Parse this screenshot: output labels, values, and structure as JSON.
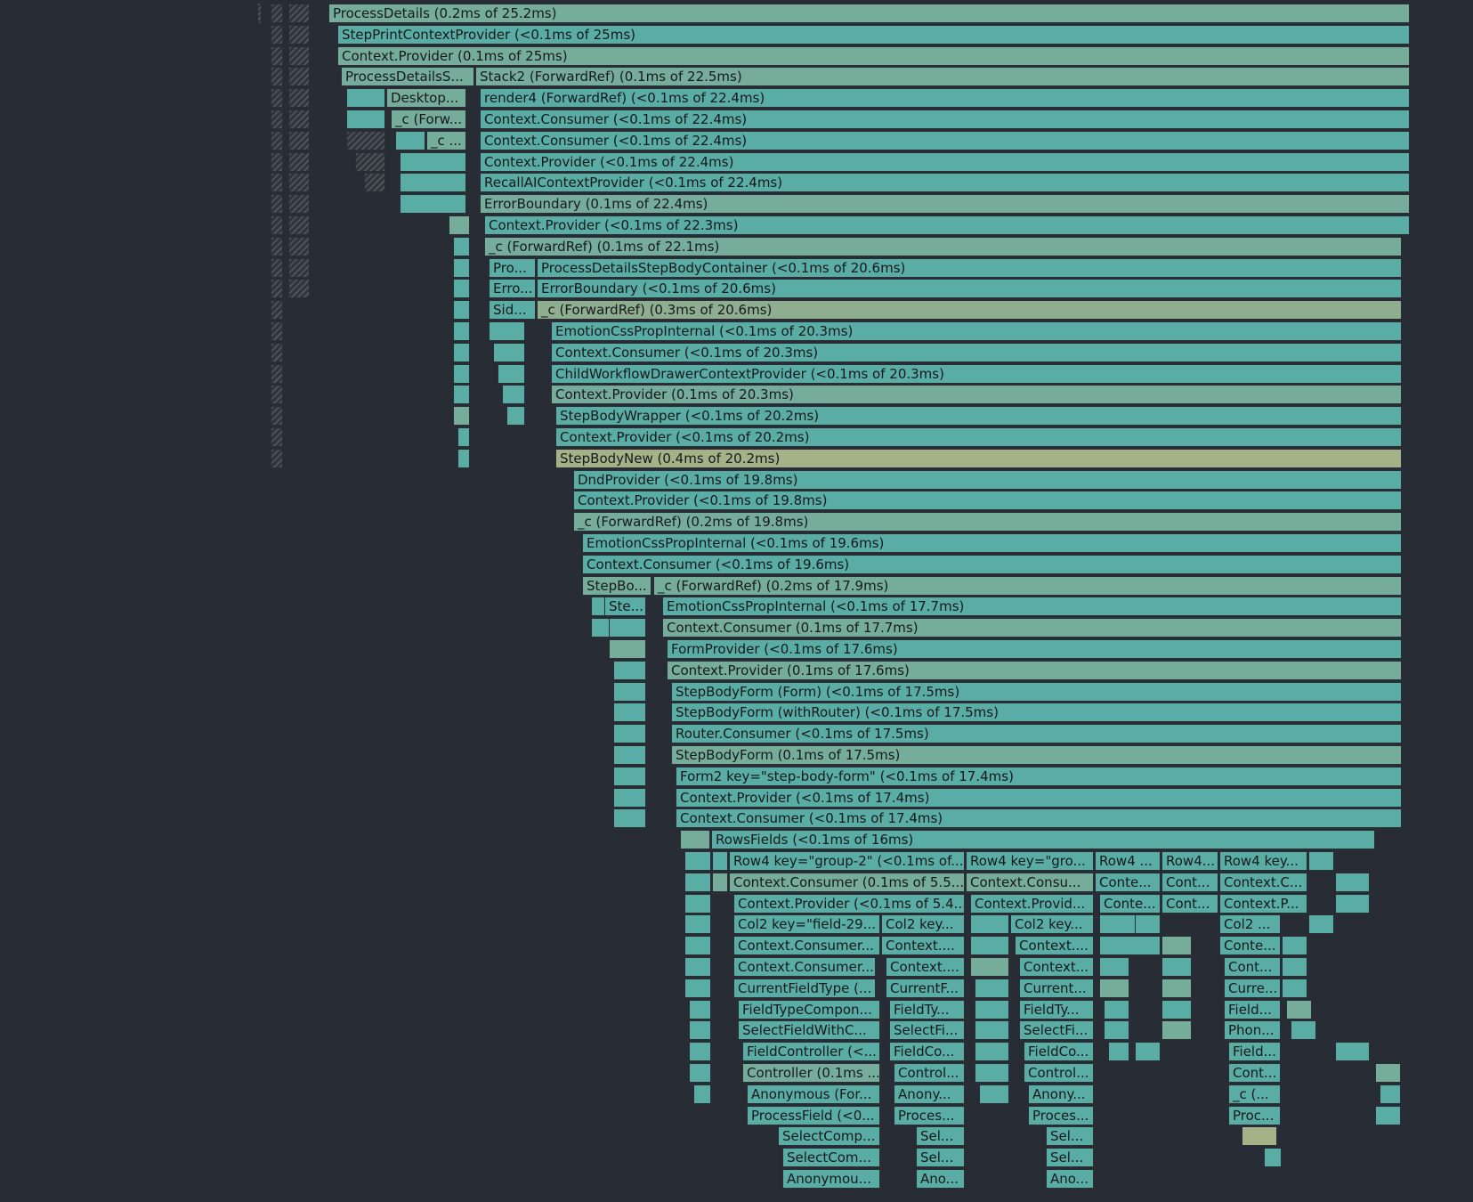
{
  "flamegraph": {
    "colors": {
      "background": "#282c34",
      "fast": "#5aada4",
      "mid": "#76ad9a",
      "slow": "#8fae8f",
      "slowest": "#a5b288",
      "teal": "#4fa9a9"
    },
    "rows": [
      [
        {
          "label": "ProcessDetails (0.2ms of 25.2ms)",
          "c": 2
        }
      ],
      [
        {
          "label": "StepPrintContextProvider (<0.1ms of 25ms)",
          "c": 1
        }
      ],
      [
        {
          "label": "Context.Provider (0.1ms of 25ms)",
          "c": 2
        }
      ],
      [
        {
          "label": "ProcessDetailsS...",
          "c": 2
        },
        {
          "label": "Stack2 (ForwardRef) (0.1ms of 22.5ms)",
          "c": 2
        }
      ],
      [
        {
          "label": "Desktop...",
          "c": 2
        },
        {
          "label": "render4 (ForwardRef) (<0.1ms of 22.4ms)",
          "c": 1
        }
      ],
      [
        {
          "label": "_c (Forw...",
          "c": 2
        },
        {
          "label": "Context.Consumer (<0.1ms of 22.4ms)",
          "c": 1
        }
      ],
      [
        {
          "label": "_c ...",
          "c": 2
        },
        {
          "label": "Context.Consumer (<0.1ms of 22.4ms)",
          "c": 1
        }
      ],
      [
        {
          "label": "Context.Provider (<0.1ms of 22.4ms)",
          "c": 1
        }
      ],
      [
        {
          "label": "RecallAIContextProvider (<0.1ms of 22.4ms)",
          "c": 1
        }
      ],
      [
        {
          "label": "ErrorBoundary (0.1ms of 22.4ms)",
          "c": 2
        }
      ],
      [
        {
          "label": "Context.Provider (<0.1ms of 22.3ms)",
          "c": 1
        }
      ],
      [
        {
          "label": "_c (ForwardRef) (0.1ms of 22.1ms)",
          "c": 2
        }
      ],
      [
        {
          "label": "Pro...",
          "c": 1
        },
        {
          "label": "ProcessDetailsStepBodyContainer (<0.1ms of 20.6ms)",
          "c": 1
        }
      ],
      [
        {
          "label": "Erro...",
          "c": 1
        },
        {
          "label": "ErrorBoundary (<0.1ms of 20.6ms)",
          "c": 1
        }
      ],
      [
        {
          "label": "Sid...",
          "c": 1
        },
        {
          "label": "_c (ForwardRef) (0.3ms of 20.6ms)",
          "c": 3
        }
      ],
      [
        {
          "label": "EmotionCssPropInternal (<0.1ms of 20.3ms)",
          "c": 1
        }
      ],
      [
        {
          "label": "Context.Consumer (<0.1ms of 20.3ms)",
          "c": 1
        }
      ],
      [
        {
          "label": "ChildWorkflowDrawerContextProvider (<0.1ms of 20.3ms)",
          "c": 1
        }
      ],
      [
        {
          "label": "Context.Provider (0.1ms of 20.3ms)",
          "c": 2
        }
      ],
      [
        {
          "label": "StepBodyWrapper (<0.1ms of 20.2ms)",
          "c": 1
        }
      ],
      [
        {
          "label": "Context.Provider (<0.1ms of 20.2ms)",
          "c": 1
        }
      ],
      [
        {
          "label": "StepBodyNew (0.4ms of 20.2ms)",
          "c": 4
        }
      ],
      [
        {
          "label": "DndProvider (<0.1ms of 19.8ms)",
          "c": 1
        }
      ],
      [
        {
          "label": "Context.Provider (<0.1ms of 19.8ms)",
          "c": 1
        }
      ],
      [
        {
          "label": "_c (ForwardRef) (0.2ms of 19.8ms)",
          "c": 2
        }
      ],
      [
        {
          "label": "EmotionCssPropInternal (<0.1ms of 19.6ms)",
          "c": 1
        }
      ],
      [
        {
          "label": "Context.Consumer (<0.1ms of 19.6ms)",
          "c": 1
        }
      ],
      [
        {
          "label": "StepBo...",
          "c": 2
        },
        {
          "label": "_c (ForwardRef) (0.2ms of 17.9ms)",
          "c": 2
        }
      ],
      [
        {
          "label": "Ste...",
          "c": 1
        },
        {
          "label": "EmotionCssPropInternal (<0.1ms of 17.7ms)",
          "c": 1
        }
      ],
      [
        {
          "label": "Context.Consumer (0.1ms of 17.7ms)",
          "c": 2
        }
      ],
      [
        {
          "label": "FormProvider (<0.1ms of 17.6ms)",
          "c": 1
        }
      ],
      [
        {
          "label": "Context.Provider (0.1ms of 17.6ms)",
          "c": 2
        }
      ],
      [
        {
          "label": "StepBodyForm (Form) (<0.1ms of 17.5ms)",
          "c": 1
        }
      ],
      [
        {
          "label": "StepBodyForm (withRouter) (<0.1ms of 17.5ms)",
          "c": 1
        }
      ],
      [
        {
          "label": "Router.Consumer (<0.1ms of 17.5ms)",
          "c": 1
        }
      ],
      [
        {
          "label": "StepBodyForm (0.1ms of 17.5ms)",
          "c": 2
        }
      ],
      [
        {
          "label": "Form2 key=\"step-body-form\" (<0.1ms of 17.4ms)",
          "c": 1
        }
      ],
      [
        {
          "label": "Context.Provider (<0.1ms of 17.4ms)",
          "c": 1
        }
      ],
      [
        {
          "label": "Context.Consumer (<0.1ms of 17.4ms)",
          "c": 1
        }
      ],
      [
        {
          "label": "RowsFields (<0.1ms of 16ms)",
          "c": 1
        }
      ],
      [
        {
          "label": "Row4 key=\"group-2\" (<0.1ms of...",
          "c": 1
        },
        {
          "label": "Row4 key=\"gro...",
          "c": 1
        },
        {
          "label": "Row4 ...",
          "c": 1
        },
        {
          "label": "Row4...",
          "c": 1
        },
        {
          "label": "Row4 key...",
          "c": 1
        }
      ],
      [
        {
          "label": "Context.Consumer (0.1ms of 5.5...",
          "c": 2
        },
        {
          "label": "Context.Consu...",
          "c": 2
        },
        {
          "label": "Conte...",
          "c": 1
        },
        {
          "label": "Cont...",
          "c": 1
        },
        {
          "label": "Context.C...",
          "c": 1
        }
      ],
      [
        {
          "label": "Context.Provider (<0.1ms of 5.4...",
          "c": 1
        },
        {
          "label": "Context.Provid...",
          "c": 1
        },
        {
          "label": "Conte...",
          "c": 1
        },
        {
          "label": "Cont...",
          "c": 1
        },
        {
          "label": "Context.P...",
          "c": 1
        }
      ],
      [
        {
          "label": "Col2 key=\"field-29...",
          "c": 1
        },
        {
          "label": "Col2 key...",
          "c": 1
        },
        {
          "label": "Col2 key...",
          "c": 1
        },
        {
          "label": "Col2 ...",
          "c": 1
        }
      ],
      [
        {
          "label": "Context.Consumer...",
          "c": 1
        },
        {
          "label": "Context....",
          "c": 1
        },
        {
          "label": "Context....",
          "c": 1
        },
        {
          "label": "Conte...",
          "c": 1
        }
      ],
      [
        {
          "label": "Context.Consumer...",
          "c": 1
        },
        {
          "label": "Context....",
          "c": 1
        },
        {
          "label": "Context...",
          "c": 1
        },
        {
          "label": "Cont...",
          "c": 1
        }
      ],
      [
        {
          "label": "CurrentFieldType (...",
          "c": 1
        },
        {
          "label": "CurrentF...",
          "c": 1
        },
        {
          "label": "Current...",
          "c": 1
        },
        {
          "label": "Curre...",
          "c": 1
        }
      ],
      [
        {
          "label": "FieldTypeCompon...",
          "c": 1
        },
        {
          "label": "FieldTy...",
          "c": 1
        },
        {
          "label": "FieldTy...",
          "c": 1
        },
        {
          "label": "Field...",
          "c": 1
        }
      ],
      [
        {
          "label": "SelectFieldWithC...",
          "c": 1
        },
        {
          "label": "SelectFi...",
          "c": 1
        },
        {
          "label": "SelectFi...",
          "c": 1
        },
        {
          "label": "Phon...",
          "c": 1
        }
      ],
      [
        {
          "label": "FieldController (<...",
          "c": 1
        },
        {
          "label": "FieldCo...",
          "c": 1
        },
        {
          "label": "FieldCo...",
          "c": 1
        },
        {
          "label": "Field...",
          "c": 1
        }
      ],
      [
        {
          "label": "Controller (0.1ms ...",
          "c": 2
        },
        {
          "label": "Control...",
          "c": 1
        },
        {
          "label": "Control...",
          "c": 1
        },
        {
          "label": "Cont...",
          "c": 1
        }
      ],
      [
        {
          "label": "Anonymous (For...",
          "c": 1
        },
        {
          "label": "Anony...",
          "c": 1
        },
        {
          "label": "Anony...",
          "c": 1
        },
        {
          "label": "_c (...",
          "c": 1
        }
      ],
      [
        {
          "label": "ProcessField (<0...",
          "c": 1
        },
        {
          "label": "Proces...",
          "c": 1
        },
        {
          "label": "Proces...",
          "c": 1
        },
        {
          "label": "Proc...",
          "c": 1
        }
      ],
      [
        {
          "label": "SelectComp...",
          "c": 1
        },
        {
          "label": "Sel...",
          "c": 1
        },
        {
          "label": "Sel...",
          "c": 1
        }
      ],
      [
        {
          "label": "SelectCom...",
          "c": 1
        },
        {
          "label": "Sel...",
          "c": 1
        },
        {
          "label": "Sel...",
          "c": 1
        }
      ],
      [
        {
          "label": "Anonymou...",
          "c": 1
        },
        {
          "label": "Ano...",
          "c": 1
        },
        {
          "label": "Ano...",
          "c": 1
        }
      ]
    ]
  }
}
